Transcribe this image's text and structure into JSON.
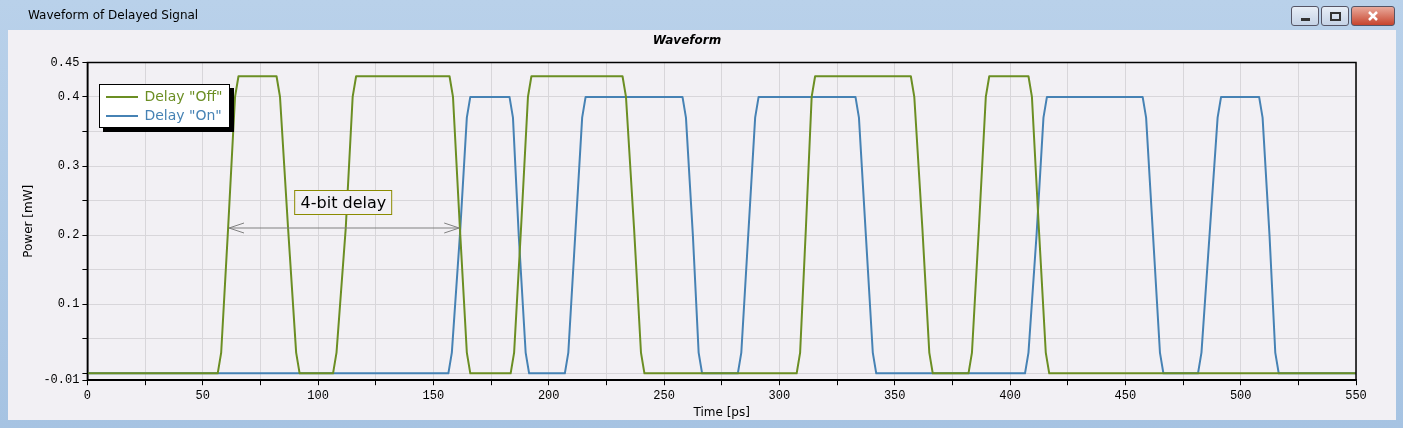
{
  "chart_data": {
    "type": "line",
    "title": "Waveform of Delayed Signal",
    "subtitle": "Waveform",
    "xlabel": "Time [ps]",
    "ylabel": "Power [mW]",
    "xlim": [
      0,
      550
    ],
    "xticks": [
      0,
      {
        "value": 25,
        "label": null
      },
      50,
      {
        "value": 75,
        "label": null
      },
      100,
      {
        "value": 125,
        "label": null
      },
      150,
      {
        "value": 175,
        "label": null
      },
      200,
      {
        "value": 225,
        "label": null
      },
      250,
      {
        "value": 275,
        "label": null
      },
      300,
      {
        "value": 325,
        "label": null
      },
      350,
      {
        "value": 375,
        "label": null
      },
      400,
      {
        "value": 425,
        "label": null
      },
      450,
      {
        "value": 475,
        "label": null
      },
      500,
      {
        "value": 525,
        "label": null
      },
      550
    ],
    "ylim": [
      -0.01,
      0.45
    ],
    "yticks": [
      -0.01,
      {
        "value": 0,
        "label": null
      },
      {
        "value": 0.05,
        "label": null
      },
      0.1,
      {
        "value": 0.15,
        "label": null
      },
      0.2,
      {
        "value": 0.25,
        "label": null
      },
      0.3,
      {
        "value": 0.35,
        "label": null
      },
      0.4,
      0.45
    ],
    "grid": true,
    "legend": "top left",
    "marker": "none",
    "line_style": "solid",
    "annotations": [
      {
        "text": "4-bit delay",
        "x": 111,
        "y": 0.21
      }
    ],
    "series": [
      {
        "name": "Delay \"Off\"",
        "color": "#6b8e23",
        "x": [
          0,
          56.5,
          58,
          61,
          64,
          65.5,
          82,
          83.5,
          87,
          90.5,
          92,
          106.5,
          108,
          112,
          115,
          116.5,
          157,
          158.5,
          161.5,
          164.5,
          166,
          183.5,
          185,
          188,
          191,
          192.5,
          232,
          233.5,
          237,
          240,
          241.5,
          307.5,
          309,
          311.5,
          314,
          315.5,
          357,
          358.5,
          362,
          365,
          366.5,
          382,
          383.5,
          386.5,
          389.5,
          391,
          408,
          409.5,
          412.5,
          415.5,
          417,
          550
        ],
        "values": [
          0,
          0,
          0.03,
          0.21,
          0.4,
          0.43,
          0.43,
          0.4,
          0.21,
          0.03,
          0,
          0,
          0.03,
          0.21,
          0.4,
          0.43,
          0.43,
          0.4,
          0.21,
          0.03,
          0,
          0,
          0.03,
          0.21,
          0.4,
          0.43,
          0.43,
          0.4,
          0.21,
          0.03,
          0,
          0,
          0.03,
          0.21,
          0.4,
          0.43,
          0.43,
          0.4,
          0.21,
          0.03,
          0,
          0,
          0.03,
          0.21,
          0.4,
          0.43,
          0.43,
          0.4,
          0.21,
          0.03,
          0,
          0
        ]
      },
      {
        "name": "Delay \"On\"",
        "color": "#4682b4",
        "x": [
          0,
          156.5,
          158,
          161.5,
          164.5,
          166,
          183,
          184.5,
          187,
          190,
          191.5,
          207,
          208.5,
          211.5,
          214.5,
          216,
          258,
          259.5,
          262.5,
          265,
          266.5,
          282,
          283.5,
          286.5,
          289.5,
          291,
          333,
          334.5,
          337.5,
          340.5,
          342,
          406.5,
          408,
          411.5,
          414.5,
          416,
          457.5,
          459,
          462,
          465,
          466.5,
          481.5,
          483,
          486.5,
          490,
          491.5,
          508,
          509.5,
          512.5,
          515,
          516.5,
          550
        ],
        "values": [
          0,
          0,
          0.03,
          0.2,
          0.37,
          0.4,
          0.4,
          0.37,
          0.2,
          0.03,
          0,
          0,
          0.03,
          0.2,
          0.37,
          0.4,
          0.4,
          0.37,
          0.2,
          0.03,
          0,
          0,
          0.03,
          0.2,
          0.37,
          0.4,
          0.4,
          0.37,
          0.2,
          0.03,
          0,
          0,
          0.03,
          0.2,
          0.37,
          0.4,
          0.4,
          0.37,
          0.2,
          0.03,
          0,
          0,
          0.03,
          0.2,
          0.37,
          0.4,
          0.4,
          0.37,
          0.2,
          0.03,
          0,
          0
        ]
      }
    ]
  }
}
